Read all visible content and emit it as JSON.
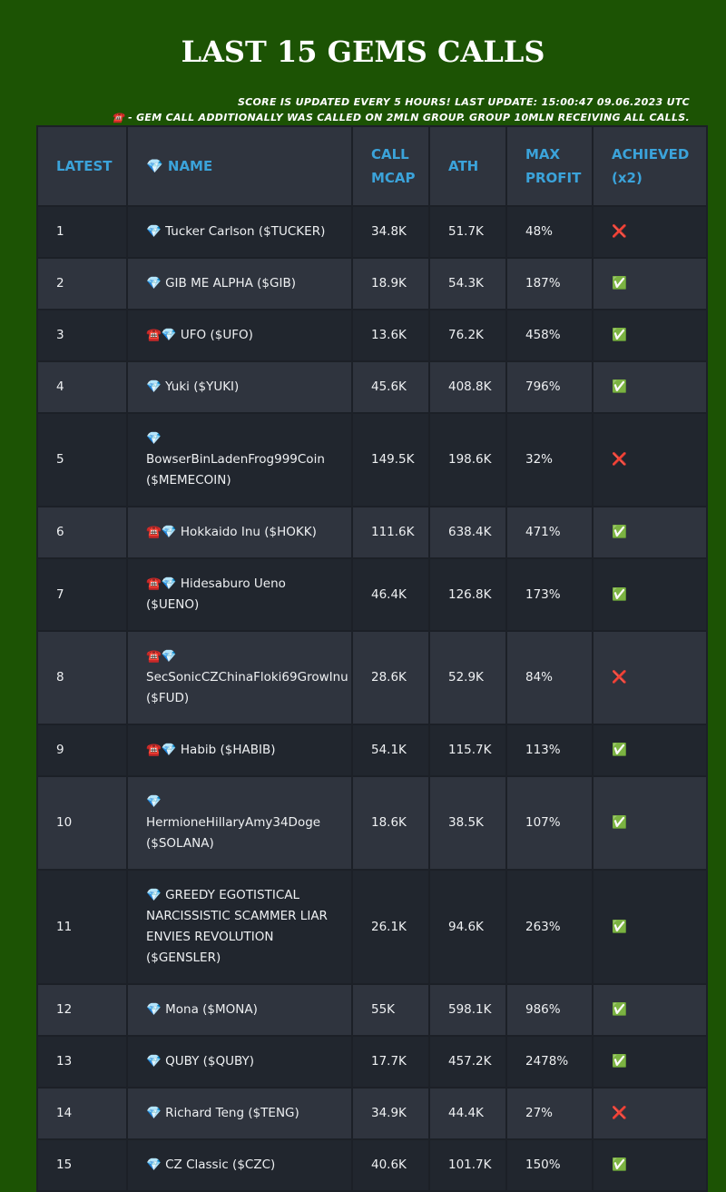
{
  "header": {
    "title": "LAST 15 GEMS CALLS",
    "notes": [
      "SCORE IS UPDATED EVERY 5 HOURS! LAST UPDATE: 15:00:47 09.06.2023 UTC",
      "☎️ - GEM CALL ADDITIONALLY WAS CALLED ON 2MLN GROUP. GROUP 10MLN RECEIVING ALL CALLS."
    ]
  },
  "table": {
    "columns": [
      "LATEST",
      "💎 NAME",
      "CALL MCAP",
      "ATH",
      "MAX PROFIT",
      "ACHIEVED (x2)"
    ],
    "rows": [
      [
        "1",
        "💎 Tucker Carlson ($TUCKER)",
        "34.8K",
        "51.7K",
        "48%",
        "❌"
      ],
      [
        "2",
        "💎 GIB ME ALPHA ($GIB)",
        "18.9K",
        "54.3K",
        "187%",
        "✅"
      ],
      [
        "3",
        "☎️💎 UFO ($UFO)",
        "13.6K",
        "76.2K",
        "458%",
        "✅"
      ],
      [
        "4",
        "💎 Yuki ($YUKI)",
        "45.6K",
        "408.8K",
        "796%",
        "✅"
      ],
      [
        "5",
        "💎 BowserBinLadenFrog999Coin ($MEMECOIN)",
        "149.5K",
        "198.6K",
        "32%",
        "❌"
      ],
      [
        "6",
        "☎️💎 Hokkaido Inu ($HOKK)",
        "111.6K",
        "638.4K",
        "471%",
        "✅"
      ],
      [
        "7",
        "☎️💎 Hidesaburo Ueno ($UENO)",
        "46.4K",
        "126.8K",
        "173%",
        "✅"
      ],
      [
        "8",
        "☎️💎 SecSonicCZChinaFloki69GrowInu ($FUD)",
        "28.6K",
        "52.9K",
        "84%",
        "❌"
      ],
      [
        "9",
        "☎️💎 Habib ($HABIB)",
        "54.1K",
        "115.7K",
        "113%",
        "✅"
      ],
      [
        "10",
        "💎 HermioneHillaryAmy34Doge ($SOLANA)",
        "18.6K",
        "38.5K",
        "107%",
        "✅"
      ],
      [
        "11",
        "💎 GREEDY EGOTISTICAL NARCISSISTIC SCAMMER LIAR ENVIES REVOLUTION ($GENSLER)",
        "26.1K",
        "94.6K",
        "263%",
        "✅"
      ],
      [
        "12",
        "💎 Mona ($MONA)",
        "55K",
        "598.1K",
        "986%",
        "✅"
      ],
      [
        "13",
        "💎 QUBY ($QUBY)",
        "17.7K",
        "457.2K",
        "2478%",
        "✅"
      ],
      [
        "14",
        "💎 Richard Teng ($TENG)",
        "34.9K",
        "44.4K",
        "27%",
        "❌"
      ],
      [
        "15",
        "💎 CZ Classic ($CZC)",
        "40.6K",
        "101.7K",
        "150%",
        "✅"
      ]
    ]
  }
}
